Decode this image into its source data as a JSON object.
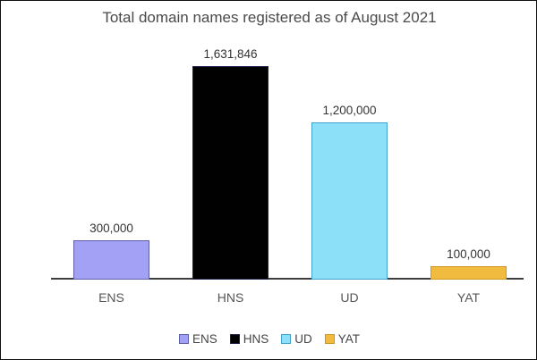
{
  "frame": {
    "background": "#ffffff",
    "border_color": "#111111"
  },
  "chart_data": {
    "type": "bar",
    "title": "Total domain names registered as of August 2021",
    "categories": [
      "ENS",
      "HNS",
      "UD",
      "YAT"
    ],
    "values": [
      300000,
      1631846,
      1200000,
      100000
    ],
    "value_labels": [
      "300,000",
      "1,631,846",
      "1,200,000",
      "100,000"
    ],
    "series_colors": [
      {
        "fill": "#a3a1f5",
        "border": "#5c5fa8"
      },
      {
        "fill": "#010101",
        "border": "#1f2150"
      },
      {
        "fill": "#8ce1f9",
        "border": "#41a3cd"
      },
      {
        "fill": "#f1bb40",
        "border": "#cf981f"
      }
    ],
    "xlabel": "",
    "ylabel": "",
    "ylim": [
      0,
      1631846
    ],
    "grid": false,
    "legend_position": "bottom",
    "legend_entries": [
      "ENS",
      "HNS",
      "UD",
      "YAT"
    ],
    "axis_color": "#3d3d3d",
    "title_color": "#4a4a4a",
    "value_label_color": "#333333",
    "category_label_color": "#555555",
    "legend_label_color": "#454545"
  }
}
